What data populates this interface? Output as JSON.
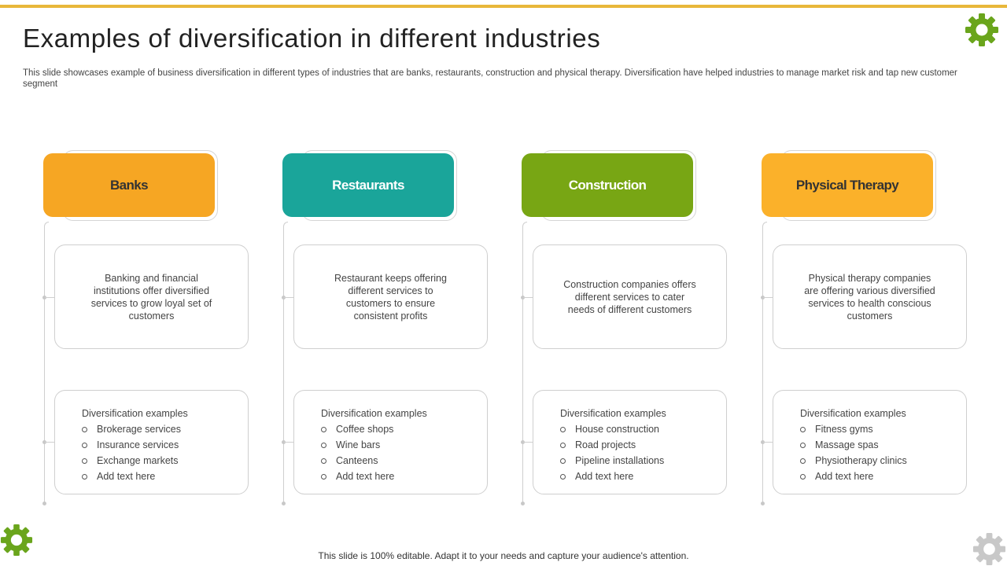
{
  "slide": {
    "title": "Examples of diversification in different industries",
    "subtitle": "This slide showcases example of business diversification in different types of industries that are banks, restaurants, construction and physical therapy. Diversification have helped industries to manage market risk and tap new customer segment",
    "footer": "This slide is 100% editable. Adapt it to your needs and capture your audience's attention."
  },
  "colors": {
    "accent_bar": "#e8b73a",
    "gear_green": "#6aa51c",
    "gear_gray": "#c8c8c8"
  },
  "icons": {
    "top_right": "gear-icon",
    "bottom_left": "gear-icon",
    "bottom_right": "gear-icon"
  },
  "industries": [
    {
      "name": "Banks",
      "color": "#f6a623",
      "text_color": "#333333",
      "description": "Banking and financial institutions offer diversified services to grow loyal set of customers",
      "examples_title": "Diversification  examples",
      "examples": [
        "Brokerage  services",
        "Insurance  services",
        "Exchange  markets",
        "Add text here"
      ]
    },
    {
      "name": "Restaurants",
      "color": "#1aa59a",
      "text_color": "#ffffff",
      "description": "Restaurant keeps offering different services to customers to ensure consistent profits",
      "examples_title": "Diversification  examples",
      "examples": [
        "Coffee  shops",
        "Wine bars",
        "Canteens",
        "Add text here"
      ]
    },
    {
      "name": "Construction",
      "color": "#78a614",
      "text_color": "#ffffff",
      "description": "Construction companies offers different services to cater needs of different customers",
      "examples_title": "Diversification  examples",
      "examples": [
        "House construction",
        "Road projects",
        "Pipeline installations",
        "Add text here"
      ]
    },
    {
      "name": "Physical Therapy",
      "color": "#fbb12a",
      "text_color": "#333333",
      "description": "Physical therapy companies are offering various diversified services to health conscious customers",
      "examples_title": "Diversification  examples",
      "examples": [
        "Fitness gyms",
        "Massage spas",
        "Physiotherapy clinics",
        "Add text here"
      ]
    }
  ]
}
